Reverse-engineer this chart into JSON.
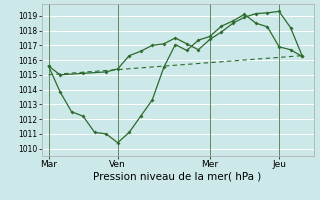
{
  "background_color": "#cce8e8",
  "grid_color": "#ffffff",
  "line_color": "#2d6a2d",
  "xlabel": "Pression niveau de la mer( hPa )",
  "ylim": [
    1009.5,
    1019.8
  ],
  "yticks": [
    1010,
    1011,
    1012,
    1013,
    1014,
    1015,
    1016,
    1017,
    1018,
    1019
  ],
  "xtick_labels": [
    "Mar",
    "Ven",
    "Mer",
    "Jeu"
  ],
  "xtick_positions": [
    0,
    3,
    7,
    10
  ],
  "vline_positions": [
    0,
    3,
    7,
    10
  ],
  "line1_x": [
    0,
    0.5,
    1.5,
    2.5,
    3.0,
    3.5,
    4.0,
    4.5,
    5.0,
    5.5,
    6.0,
    6.5,
    7.0,
    7.5,
    8.0,
    8.5,
    9.0,
    9.5,
    10.0,
    10.5,
    11.0
  ],
  "line1_y": [
    1015.6,
    1015.0,
    1015.1,
    1015.2,
    1015.4,
    1016.3,
    1016.6,
    1017.0,
    1017.1,
    1017.5,
    1017.1,
    1016.7,
    1017.4,
    1017.9,
    1018.5,
    1018.9,
    1019.15,
    1019.2,
    1019.3,
    1018.2,
    1016.3
  ],
  "line2_x": [
    0,
    0.5,
    1.0,
    1.5,
    2.0,
    2.5,
    3.0,
    3.5,
    4.0,
    4.5,
    5.0,
    5.5,
    6.0,
    6.5,
    7.0,
    7.5,
    8.0,
    8.5,
    9.0,
    9.5,
    10.0,
    10.5,
    11.0
  ],
  "line2_y": [
    1015.6,
    1013.85,
    1012.5,
    1012.2,
    1011.1,
    1011.0,
    1010.4,
    1011.1,
    1012.2,
    1013.3,
    1015.5,
    1017.05,
    1016.65,
    1017.35,
    1017.6,
    1018.3,
    1018.65,
    1019.1,
    1018.5,
    1018.25,
    1016.9,
    1016.7,
    1016.25
  ],
  "line3_x": [
    0,
    11.0
  ],
  "line3_y": [
    1015.0,
    1016.3
  ],
  "xlim": [
    -0.3,
    11.5
  ],
  "marker": "D",
  "markersize": 2.0
}
